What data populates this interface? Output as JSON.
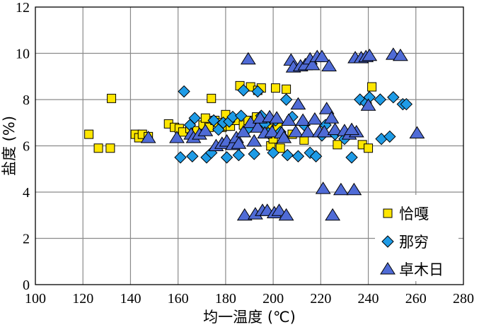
{
  "chart_data": {
    "type": "scatter",
    "xlabel": "均一温度 (℃)",
    "ylabel": "盐度 (%)",
    "xlim": [
      100,
      280
    ],
    "ylim": [
      0,
      12
    ],
    "x_ticks": [
      "100",
      "120",
      "140",
      "160",
      "180",
      "200",
      "220",
      "240",
      "260",
      "280"
    ],
    "y_ticks": [
      "0",
      "2",
      "4",
      "6",
      "8",
      "10",
      "12"
    ],
    "grid": true,
    "legend_placement": "bottom-right",
    "series": [
      {
        "name": "恰嘎",
        "marker": "square",
        "color": "#ffe600",
        "points": [
          [
            122.5,
            6.5
          ],
          [
            126.5,
            5.9
          ],
          [
            131.5,
            5.9
          ],
          [
            132,
            8.05
          ],
          [
            142,
            6.5
          ],
          [
            143.5,
            6.35
          ],
          [
            145,
            6.5
          ],
          [
            147.5,
            6.4
          ],
          [
            156,
            6.95
          ],
          [
            158.5,
            6.8
          ],
          [
            160.5,
            6.75
          ],
          [
            162,
            6.6
          ],
          [
            165,
            6.75
          ],
          [
            168,
            6.65
          ],
          [
            170.5,
            6.9
          ],
          [
            171.5,
            7.2
          ],
          [
            173,
            6.8
          ],
          [
            174,
            8.05
          ],
          [
            175.5,
            7.1
          ],
          [
            177,
            7.0
          ],
          [
            178.5,
            6.8
          ],
          [
            180,
            7.35
          ],
          [
            180.5,
            6.85
          ],
          [
            182,
            6.85
          ],
          [
            184.5,
            7.1
          ],
          [
            186,
            8.6
          ],
          [
            187.5,
            6.9
          ],
          [
            189.5,
            7.1
          ],
          [
            190.5,
            8.55
          ],
          [
            191.5,
            6.8
          ],
          [
            193,
            7.25
          ],
          [
            193.5,
            8.4
          ],
          [
            195,
            8.5
          ],
          [
            196,
            7.0
          ],
          [
            198,
            6.75
          ],
          [
            199,
            6.0
          ],
          [
            200,
            6.3
          ],
          [
            201,
            8.5
          ],
          [
            202,
            6.8
          ],
          [
            203,
            5.9
          ],
          [
            205.5,
            8.45
          ],
          [
            208,
            6.5
          ],
          [
            213,
            6.25
          ],
          [
            227,
            6.05
          ],
          [
            237.5,
            6.05
          ],
          [
            240,
            5.9
          ],
          [
            241.5,
            8.55
          ]
        ]
      },
      {
        "name": "那穷",
        "marker": "diamond",
        "color": "#1e9be6",
        "points": [
          [
            161,
            5.5
          ],
          [
            162.5,
            8.35
          ],
          [
            165,
            6.9
          ],
          [
            166,
            5.55
          ],
          [
            167,
            7.2
          ],
          [
            172,
            5.5
          ],
          [
            174,
            5.7
          ],
          [
            175,
            7.1
          ],
          [
            177,
            6.7
          ],
          [
            179,
            7.0
          ],
          [
            180.5,
            5.5
          ],
          [
            181.5,
            7.05
          ],
          [
            183,
            7.25
          ],
          [
            185.5,
            5.6
          ],
          [
            186.5,
            7.3
          ],
          [
            187.5,
            8.4
          ],
          [
            189.5,
            6.75
          ],
          [
            192,
            5.65
          ],
          [
            193.5,
            8.35
          ],
          [
            195,
            7.3
          ],
          [
            196.5,
            6.95
          ],
          [
            198,
            6.55
          ],
          [
            200,
            5.7
          ],
          [
            201,
            7.1
          ],
          [
            203,
            6.6
          ],
          [
            205.5,
            8.0
          ],
          [
            206,
            5.6
          ],
          [
            208,
            7.25
          ],
          [
            210.5,
            5.55
          ],
          [
            213,
            6.9
          ],
          [
            215.5,
            5.7
          ],
          [
            218,
            5.55
          ],
          [
            220.5,
            6.45
          ],
          [
            222,
            6.9
          ],
          [
            226,
            6.5
          ],
          [
            230,
            6.3
          ],
          [
            233,
            5.5
          ],
          [
            236.5,
            8.0
          ],
          [
            239,
            7.85
          ],
          [
            240.5,
            8.1
          ],
          [
            245,
            8.0
          ],
          [
            245.5,
            6.3
          ],
          [
            249,
            6.4
          ],
          [
            250.5,
            8.1
          ],
          [
            254.5,
            7.8
          ],
          [
            256,
            7.8
          ]
        ]
      },
      {
        "name": "卓木日",
        "marker": "triangle",
        "color": "#4f6bd6",
        "points": [
          [
            147.5,
            6.35
          ],
          [
            159.5,
            6.35
          ],
          [
            165.5,
            6.5
          ],
          [
            166.5,
            6.35
          ],
          [
            169,
            6.5
          ],
          [
            171.5,
            6.65
          ],
          [
            176,
            6.0
          ],
          [
            178.5,
            6.1
          ],
          [
            180.5,
            6.2
          ],
          [
            183,
            6.05
          ],
          [
            184.5,
            6.35
          ],
          [
            185.5,
            6.1
          ],
          [
            187.5,
            6.6
          ],
          [
            188,
            3.0
          ],
          [
            189.5,
            9.75
          ],
          [
            190.5,
            7.0
          ],
          [
            192,
            6.2
          ],
          [
            192.5,
            3.05
          ],
          [
            193.5,
            6.8
          ],
          [
            194.5,
            7.2
          ],
          [
            195.5,
            3.2
          ],
          [
            196.5,
            6.55
          ],
          [
            197.5,
            3.2
          ],
          [
            198.5,
            7.25
          ],
          [
            199.5,
            6.6
          ],
          [
            200.5,
            3.1
          ],
          [
            201.5,
            7.2
          ],
          [
            202.5,
            3.2
          ],
          [
            203.5,
            6.55
          ],
          [
            204.5,
            6.35
          ],
          [
            205.5,
            3.0
          ],
          [
            206.5,
            7.1
          ],
          [
            207.5,
            9.7
          ],
          [
            208.5,
            9.4
          ],
          [
            209.5,
            6.6
          ],
          [
            210.5,
            7.8
          ],
          [
            211.5,
            9.45
          ],
          [
            212.5,
            7.1
          ],
          [
            213.5,
            9.5
          ],
          [
            214.5,
            6.6
          ],
          [
            215.5,
            9.75
          ],
          [
            216.5,
            9.5
          ],
          [
            217.5,
            7.15
          ],
          [
            218.5,
            9.85
          ],
          [
            219.5,
            6.6
          ],
          [
            220.5,
            9.85
          ],
          [
            221,
            4.15
          ],
          [
            221.5,
            6.6
          ],
          [
            222.5,
            7.6
          ],
          [
            223.5,
            9.45
          ],
          [
            224.5,
            7.2
          ],
          [
            225,
            3.0
          ],
          [
            226,
            6.7
          ],
          [
            228.5,
            4.1
          ],
          [
            230,
            6.65
          ],
          [
            232,
            6.5
          ],
          [
            234,
            4.1
          ],
          [
            234.5,
            9.8
          ],
          [
            237,
            9.8
          ],
          [
            239,
            9.85
          ],
          [
            240,
            7.75
          ],
          [
            240.5,
            9.9
          ],
          [
            250.5,
            9.95
          ],
          [
            253.5,
            9.9
          ],
          [
            260.5,
            6.55
          ],
          [
            235,
            6.6
          ],
          [
            233,
            6.7
          ]
        ]
      }
    ]
  }
}
